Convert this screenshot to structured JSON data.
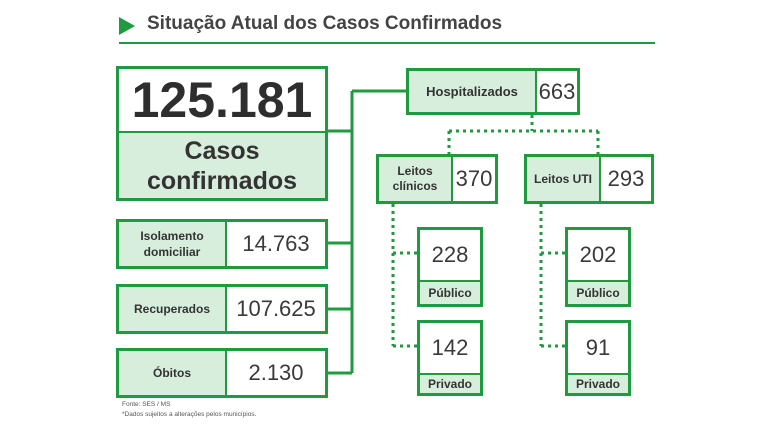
{
  "title": "Situação Atual dos Casos Confirmados",
  "main": {
    "value": "125.181",
    "label": "Casos confirmados"
  },
  "status": [
    {
      "label": "Isolamento domiciliar",
      "value": "14.763"
    },
    {
      "label": "Recuperados",
      "value": "107.625"
    },
    {
      "label": "Óbitos",
      "value": "2.130"
    }
  ],
  "hospitalizados": {
    "label": "Hospitalizados",
    "value": "663"
  },
  "leitos": [
    {
      "label": "Leitos clínicos",
      "value": "370",
      "breakdown": [
        {
          "value": "228",
          "label": "Público"
        },
        {
          "value": "142",
          "label": "Privado"
        }
      ]
    },
    {
      "label": "Leitos UTI",
      "value": "293",
      "breakdown": [
        {
          "value": "202",
          "label": "Público"
        },
        {
          "value": "91",
          "label": "Privado"
        }
      ]
    }
  ],
  "source": "Fonte: SES / MS",
  "footnote": "*Dados sujeitos a alterações pelos municípios.",
  "colors": {
    "accent": "#1f9a3f",
    "label_fill": "#d8eedd",
    "text": "#2b2b2b"
  },
  "icons": {
    "title_marker": "play-triangle-icon"
  }
}
